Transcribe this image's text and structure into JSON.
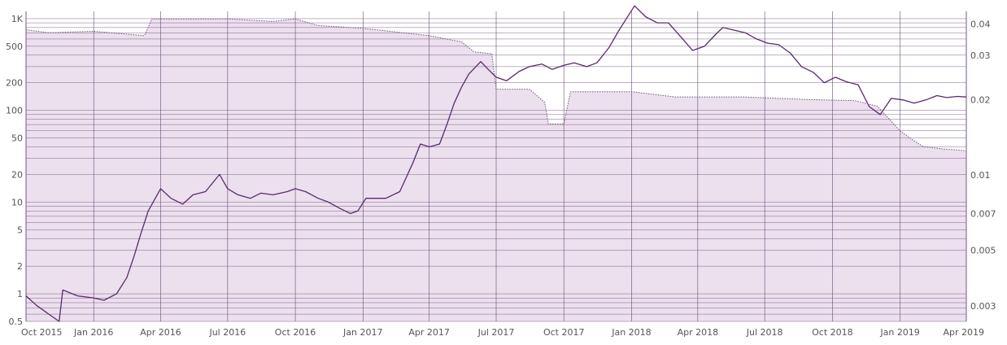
{
  "chart_data": {
    "type": "line",
    "title": "",
    "x_tick_labels": [
      "Oct 2015",
      "Jan 2016",
      "Apr 2016",
      "Jul 2016",
      "Oct 2016",
      "Jan 2017",
      "Apr 2017",
      "Jul 2017",
      "Oct 2017",
      "Jan 2018",
      "Apr 2018",
      "Jul 2018",
      "Oct 2018",
      "Jan 2019",
      "Apr 2019"
    ],
    "xlim": [
      "2015-10-01",
      "2019-04-01"
    ],
    "y_left": {
      "scale": "log",
      "range": [
        0.5,
        1200
      ],
      "tick_labels": [
        "0.5",
        "1",
        "2",
        "5",
        "10",
        "20",
        "50",
        "100",
        "200",
        "500",
        "1K"
      ],
      "tick_values": [
        0.5,
        1,
        2,
        5,
        10,
        20,
        50,
        100,
        200,
        500,
        1000
      ]
    },
    "y_right": {
      "scale": "log",
      "range": [
        0.0026,
        0.045
      ],
      "tick_labels": [
        "0.003",
        "0.005",
        "0.007",
        "0.01",
        "0.02",
        "0.03",
        "0.04"
      ],
      "tick_values": [
        0.003,
        0.005,
        0.007,
        0.01,
        0.02,
        0.03,
        0.04
      ]
    },
    "grid": true,
    "colors": {
      "line": "#5a2a6e",
      "fill": "#ecdfee",
      "grid": "#6a4a78",
      "dotted": "#6a5a78"
    },
    "series": [
      {
        "axis": "left",
        "style": "solid",
        "points": [
          [
            "2015-10-01",
            0.95
          ],
          [
            "2015-10-15",
            0.75
          ],
          [
            "2015-11-01",
            0.6
          ],
          [
            "2015-11-15",
            0.5
          ],
          [
            "2015-11-20",
            1.1
          ],
          [
            "2015-12-10",
            0.95
          ],
          [
            "2016-01-01",
            0.9
          ],
          [
            "2016-01-15",
            0.85
          ],
          [
            "2016-02-01",
            1.0
          ],
          [
            "2016-02-15",
            1.5
          ],
          [
            "2016-02-25",
            2.6
          ],
          [
            "2016-03-05",
            4.5
          ],
          [
            "2016-03-15",
            8
          ],
          [
            "2016-04-01",
            14
          ],
          [
            "2016-04-15",
            11
          ],
          [
            "2016-05-01",
            9.5
          ],
          [
            "2016-05-15",
            12
          ],
          [
            "2016-06-01",
            13
          ],
          [
            "2016-06-20",
            20
          ],
          [
            "2016-07-01",
            14
          ],
          [
            "2016-07-15",
            12
          ],
          [
            "2016-08-01",
            11
          ],
          [
            "2016-08-15",
            12.5
          ],
          [
            "2016-09-01",
            12
          ],
          [
            "2016-09-20",
            13
          ],
          [
            "2016-10-01",
            14
          ],
          [
            "2016-10-15",
            13
          ],
          [
            "2016-11-01",
            11
          ],
          [
            "2016-11-15",
            10
          ],
          [
            "2016-12-01",
            8.5
          ],
          [
            "2016-12-15",
            7.5
          ],
          [
            "2016-12-25",
            8
          ],
          [
            "2017-01-05",
            11
          ],
          [
            "2017-02-01",
            11
          ],
          [
            "2017-02-20",
            13
          ],
          [
            "2017-03-10",
            27
          ],
          [
            "2017-03-20",
            43
          ],
          [
            "2017-04-01",
            40
          ],
          [
            "2017-04-15",
            43
          ],
          [
            "2017-04-25",
            70
          ],
          [
            "2017-05-05",
            120
          ],
          [
            "2017-05-15",
            180
          ],
          [
            "2017-05-25",
            250
          ],
          [
            "2017-06-10",
            340
          ],
          [
            "2017-06-20",
            280
          ],
          [
            "2017-07-01",
            230
          ],
          [
            "2017-07-15",
            210
          ],
          [
            "2017-08-01",
            265
          ],
          [
            "2017-08-15",
            300
          ],
          [
            "2017-09-01",
            320
          ],
          [
            "2017-09-15",
            280
          ],
          [
            "2017-10-01",
            310
          ],
          [
            "2017-10-15",
            330
          ],
          [
            "2017-11-01",
            300
          ],
          [
            "2017-11-15",
            330
          ],
          [
            "2017-12-01",
            480
          ],
          [
            "2017-12-15",
            750
          ],
          [
            "2018-01-05",
            1380
          ],
          [
            "2018-01-20",
            1050
          ],
          [
            "2018-02-05",
            900
          ],
          [
            "2018-02-20",
            900
          ],
          [
            "2018-03-10",
            620
          ],
          [
            "2018-03-25",
            450
          ],
          [
            "2018-04-10",
            500
          ],
          [
            "2018-04-25",
            670
          ],
          [
            "2018-05-05",
            800
          ],
          [
            "2018-05-20",
            750
          ],
          [
            "2018-06-05",
            700
          ],
          [
            "2018-06-20",
            600
          ],
          [
            "2018-07-05",
            540
          ],
          [
            "2018-07-20",
            520
          ],
          [
            "2018-08-05",
            420
          ],
          [
            "2018-08-20",
            300
          ],
          [
            "2018-09-05",
            260
          ],
          [
            "2018-09-20",
            200
          ],
          [
            "2018-10-05",
            230
          ],
          [
            "2018-10-20",
            205
          ],
          [
            "2018-11-05",
            190
          ],
          [
            "2018-11-20",
            110
          ],
          [
            "2018-12-05",
            90
          ],
          [
            "2018-12-20",
            135
          ],
          [
            "2019-01-05",
            130
          ],
          [
            "2019-01-20",
            120
          ],
          [
            "2019-02-05",
            130
          ],
          [
            "2019-02-20",
            145
          ],
          [
            "2019-03-05",
            138
          ],
          [
            "2019-03-20",
            142
          ],
          [
            "2019-04-01",
            140
          ]
        ]
      },
      {
        "axis": "right",
        "style": "dotted",
        "filled": true,
        "points": [
          [
            "2015-10-01",
            0.038
          ],
          [
            "2015-11-01",
            0.037
          ],
          [
            "2016-01-01",
            0.0375
          ],
          [
            "2016-03-10",
            0.036
          ],
          [
            "2016-03-20",
            0.042
          ],
          [
            "2016-05-01",
            0.042
          ],
          [
            "2016-07-01",
            0.042
          ],
          [
            "2016-09-01",
            0.041
          ],
          [
            "2016-10-01",
            0.042
          ],
          [
            "2016-11-01",
            0.0395
          ],
          [
            "2017-01-01",
            0.0385
          ],
          [
            "2017-04-01",
            0.036
          ],
          [
            "2017-05-15",
            0.034
          ],
          [
            "2017-06-01",
            0.031
          ],
          [
            "2017-06-25",
            0.0305
          ],
          [
            "2017-07-01",
            0.022
          ],
          [
            "2017-08-15",
            0.022
          ],
          [
            "2017-09-05",
            0.0195
          ],
          [
            "2017-09-10",
            0.016
          ],
          [
            "2017-10-01",
            0.016
          ],
          [
            "2017-10-10",
            0.0215
          ],
          [
            "2018-01-01",
            0.0215
          ],
          [
            "2018-03-01",
            0.0205
          ],
          [
            "2018-06-01",
            0.0205
          ],
          [
            "2018-09-01",
            0.02
          ],
          [
            "2018-11-01",
            0.0198
          ],
          [
            "2018-12-01",
            0.0188
          ],
          [
            "2018-12-15",
            0.017
          ],
          [
            "2019-01-01",
            0.015
          ],
          [
            "2019-01-15",
            0.014
          ],
          [
            "2019-02-01",
            0.013
          ],
          [
            "2019-03-01",
            0.0127
          ],
          [
            "2019-04-01",
            0.0125
          ]
        ]
      }
    ]
  }
}
